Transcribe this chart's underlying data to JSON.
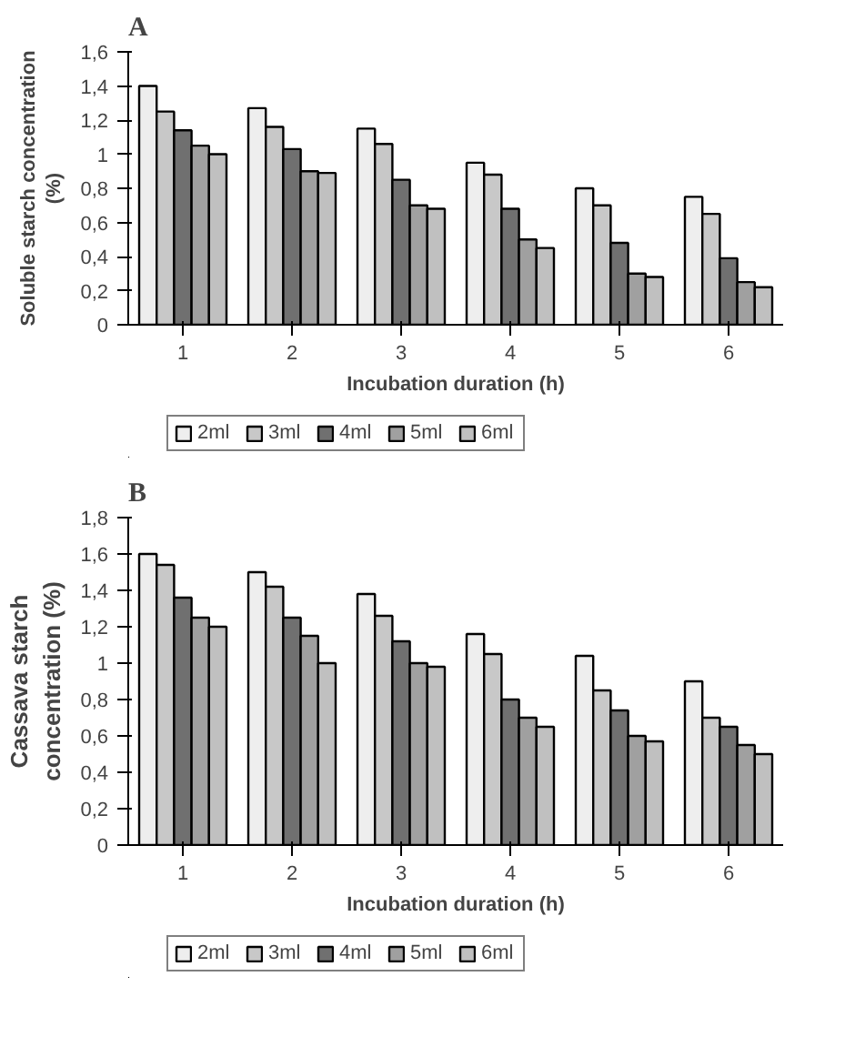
{
  "chart_data": [
    {
      "type": "bar",
      "title": "A",
      "xlabel": "Incubation duration (h)",
      "ylabel": "Soluble starch concentration\n(%)",
      "categories": [
        "1",
        "2",
        "3",
        "4",
        "5",
        "6"
      ],
      "series": [
        {
          "name": "2ml",
          "color": "#eeeeee",
          "values": [
            1.4,
            1.27,
            1.15,
            0.95,
            0.8,
            0.75
          ]
        },
        {
          "name": "3ml",
          "color": "#c8c8c8",
          "values": [
            1.25,
            1.16,
            1.06,
            0.88,
            0.7,
            0.65
          ]
        },
        {
          "name": "4ml",
          "color": "#707070",
          "values": [
            1.14,
            1.03,
            0.85,
            0.68,
            0.48,
            0.39
          ]
        },
        {
          "name": "5ml",
          "color": "#a0a0a0",
          "values": [
            1.05,
            0.9,
            0.7,
            0.5,
            0.3,
            0.25
          ]
        },
        {
          "name": "6ml",
          "color": "#c0c0c0",
          "values": [
            1.0,
            0.89,
            0.68,
            0.45,
            0.28,
            0.22
          ]
        }
      ],
      "ylim": [
        0,
        1.6
      ],
      "yticks": [
        0,
        {
          "value": 0.2,
          "label": "0,2"
        },
        {
          "value": 0.4,
          "label": "0,4"
        },
        {
          "value": 0.6,
          "label": "0,6"
        },
        {
          "value": 0.8,
          "label": "0,8"
        },
        1,
        {
          "value": 1.2,
          "label": "1,2"
        },
        {
          "value": 1.4,
          "label": "1,4"
        },
        {
          "value": 1.6,
          "label": "1,6"
        }
      ],
      "grid": false,
      "legend": "bottom"
    },
    {
      "type": "bar",
      "title": "B",
      "xlabel": "Incubation duration (h)",
      "ylabel": "Cassava starch\nconcentration (%)",
      "categories": [
        "1",
        "2",
        "3",
        "4",
        "5",
        "6"
      ],
      "series": [
        {
          "name": "2ml",
          "color": "#eeeeee",
          "values": [
            1.6,
            1.5,
            1.38,
            1.16,
            1.04,
            0.9
          ]
        },
        {
          "name": "3ml",
          "color": "#c8c8c8",
          "values": [
            1.54,
            1.42,
            1.26,
            1.05,
            0.85,
            0.7
          ]
        },
        {
          "name": "4ml",
          "color": "#707070",
          "values": [
            1.36,
            1.25,
            1.12,
            0.8,
            0.74,
            0.65
          ]
        },
        {
          "name": "5ml",
          "color": "#a0a0a0",
          "values": [
            1.25,
            1.15,
            1.0,
            0.7,
            0.6,
            0.55
          ]
        },
        {
          "name": "6ml",
          "color": "#c0c0c0",
          "values": [
            1.2,
            1.0,
            0.98,
            0.65,
            0.57,
            0.5
          ]
        }
      ],
      "ylim": [
        0,
        1.8
      ],
      "yticks": [
        0,
        {
          "value": 0.2,
          "label": "0,2"
        },
        {
          "value": 0.4,
          "label": "0,4"
        },
        {
          "value": 0.6,
          "label": "0,6"
        },
        {
          "value": 0.8,
          "label": "0,8"
        },
        1,
        {
          "value": 1.2,
          "label": "1,2"
        },
        {
          "value": 1.4,
          "label": "1,4"
        },
        {
          "value": 1.6,
          "label": "1,6"
        },
        {
          "value": 1.8,
          "label": "1,8"
        }
      ],
      "grid": false,
      "legend": "bottom"
    }
  ]
}
